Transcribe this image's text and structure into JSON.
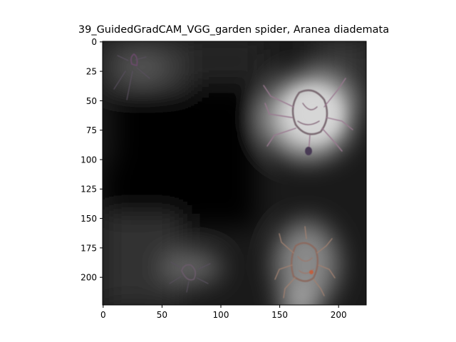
{
  "title": "39_GuidedGradCAM_VGG_garden spider, Aranea diademata",
  "image": {
    "description_icon": "heatmap-overlay-image",
    "colors": {
      "background": "#000000",
      "hot": "#ffffff"
    }
  },
  "axes": {
    "x_ticks": [
      "0",
      "50",
      "100",
      "150",
      "200"
    ],
    "y_ticks": [
      "0",
      "25",
      "50",
      "75",
      "100",
      "125",
      "150",
      "175",
      "200"
    ],
    "x_range": [
      0,
      224
    ],
    "y_range": [
      0,
      224
    ]
  }
}
